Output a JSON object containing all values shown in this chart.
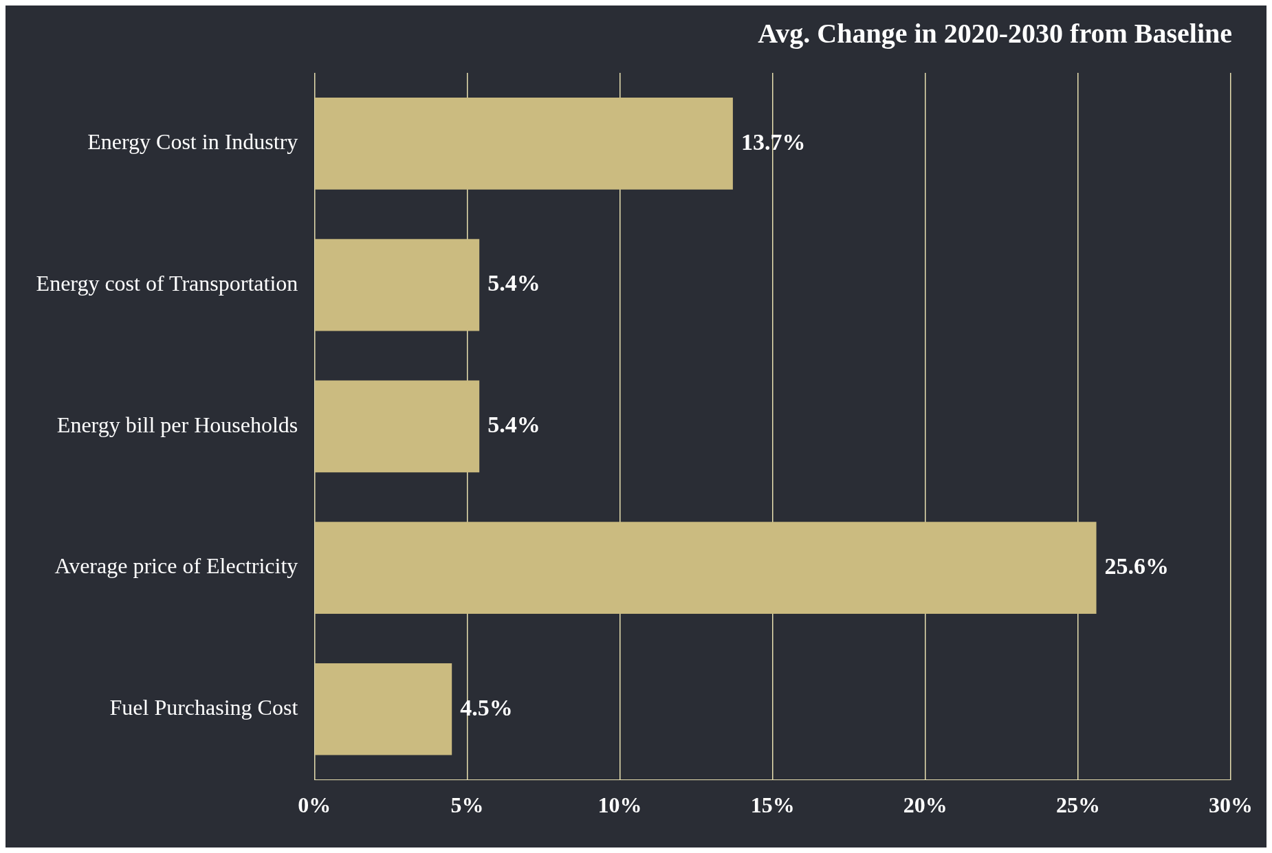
{
  "chart_data": {
    "type": "bar",
    "orientation": "horizontal",
    "title": "Avg. Change in 2020-2030 from Baseline",
    "categories": [
      "Energy Cost in Industry",
      "Energy cost of Transportation",
      "Energy bill per Households",
      "Average price of Electricity",
      "Fuel Purchasing Cost"
    ],
    "values": [
      13.7,
      5.4,
      5.4,
      25.6,
      4.5
    ],
    "value_labels": [
      "13.7%",
      "5.4%",
      "5.4%",
      "25.6%",
      "4.5%"
    ],
    "color": "#cbbb80",
    "xlim": [
      0,
      30
    ],
    "xticks": [
      {
        "value": 0,
        "label": "0%"
      },
      {
        "value": 5,
        "label": "5%"
      },
      {
        "value": 10,
        "label": "10%"
      },
      {
        "value": 15,
        "label": "15%"
      },
      {
        "value": 20,
        "label": "20%"
      },
      {
        "value": 25,
        "label": "25%"
      },
      {
        "value": 30,
        "label": "30%"
      }
    ],
    "grid": "x",
    "legend": false
  }
}
